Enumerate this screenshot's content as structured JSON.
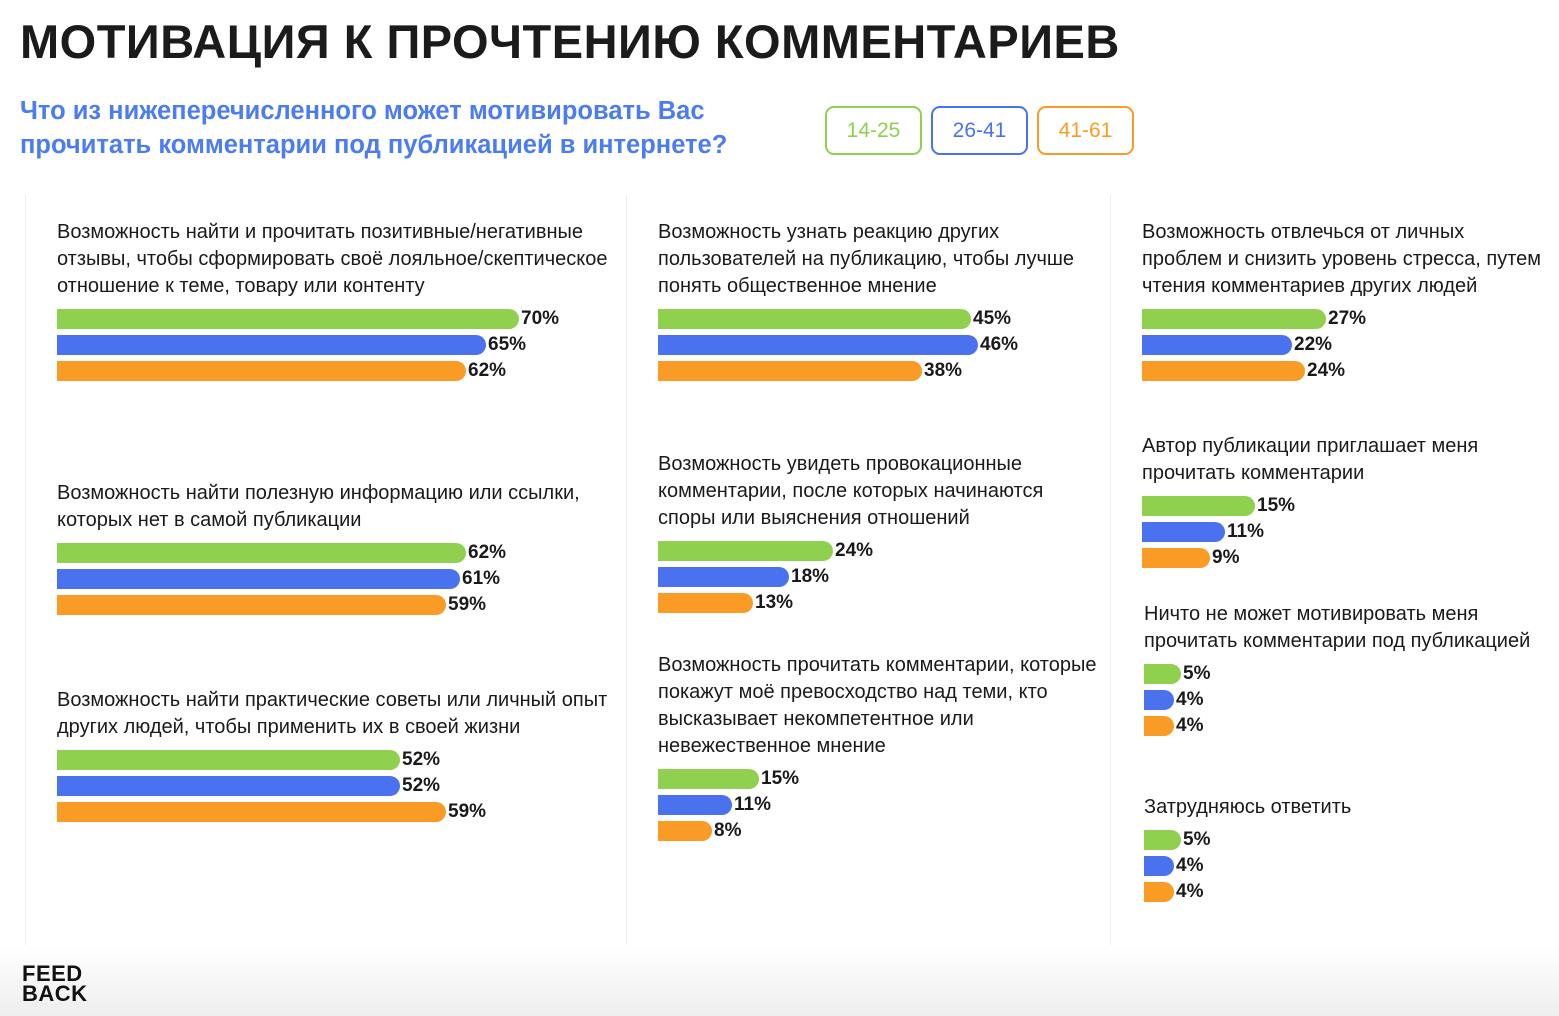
{
  "title": "МОТИВАЦИЯ К ПРОЧТЕНИЮ КОММЕНТАРИЕВ",
  "subtitle": "Что из нижеперечисленного может мотивировать Вас прочитать комментарии под публикацией в интернете?",
  "logo": {
    "line1": "FEED",
    "line2": "BACK"
  },
  "colors": {
    "green": "#8fd14f",
    "blue": "#4a72ee",
    "orange": "#f99b25",
    "title": "#1b1b1b",
    "subtitle": "#4b7cf0"
  },
  "chart_data": {
    "type": "bar",
    "orientation": "horizontal",
    "series": [
      {
        "name": "14-25",
        "color": "#8fd14f"
      },
      {
        "name": "26-41",
        "color": "#4a72ee"
      },
      {
        "name": "41-61",
        "color": "#f99b25"
      }
    ],
    "categories": [
      {
        "label": "Возможность найти и прочитать позитивные/негативные отзывы, чтобы сформировать своё лояльное/скептическое отношение к теме, товару или контенту",
        "values": [
          70,
          65,
          62
        ],
        "value_labels": [
          "70%",
          "65%",
          "62%"
        ]
      },
      {
        "label": "Возможность найти полезную информацию или ссылки, которых нет в самой публикации",
        "values": [
          62,
          61,
          59
        ],
        "value_labels": [
          "62%",
          "61%",
          "59%"
        ]
      },
      {
        "label": "Возможность найти практические советы или личный опыт других людей, чтобы применить их в своей жизни",
        "values": [
          52,
          52,
          59
        ],
        "value_labels": [
          "52%",
          "52%",
          "59%"
        ]
      },
      {
        "label": "Возможность узнать реакцию других пользователей на публикацию, чтобы лучше понять общественное мнение",
        "values": [
          45,
          46,
          38
        ],
        "value_labels": [
          "45%",
          "46%",
          "38%"
        ]
      },
      {
        "label": "Возможность увидеть провокационные комментарии, после которых начинаются споры или выяснения отношений",
        "values": [
          24,
          18,
          13
        ],
        "value_labels": [
          "24%",
          "18%",
          "13%"
        ]
      },
      {
        "label": "Возможность прочитать комментарии, которые покажут моё превосходство над теми, кто высказывает некомпетентное или невежественное мнение",
        "values": [
          15,
          11,
          8
        ],
        "value_labels": [
          "15%",
          "11%",
          "8%"
        ]
      },
      {
        "label": "Возможность отвлечься от личных проблем и снизить уровень стресса, путем чтения комментариев других людей",
        "values": [
          27,
          22,
          24
        ],
        "value_labels": [
          "27%",
          "22%",
          "24%"
        ]
      },
      {
        "label": "Автор публикации приглашает меня прочитать комментарии",
        "values": [
          15,
          11,
          9
        ],
        "value_labels": [
          "15%",
          "11%",
          "9%"
        ]
      },
      {
        "label": "Ничто не может мотивировать меня прочитать комментарии под публикацией",
        "values": [
          5,
          4,
          4
        ],
        "value_labels": [
          "5%",
          "4%",
          "4%"
        ]
      },
      {
        "label": "Затрудняюсь ответить",
        "values": [
          5,
          4,
          4
        ],
        "value_labels": [
          "5%",
          "4%",
          "4%"
        ]
      }
    ],
    "xlim": [
      0,
      100
    ],
    "legend_placement": "top, right of subtitle",
    "grid": false
  }
}
